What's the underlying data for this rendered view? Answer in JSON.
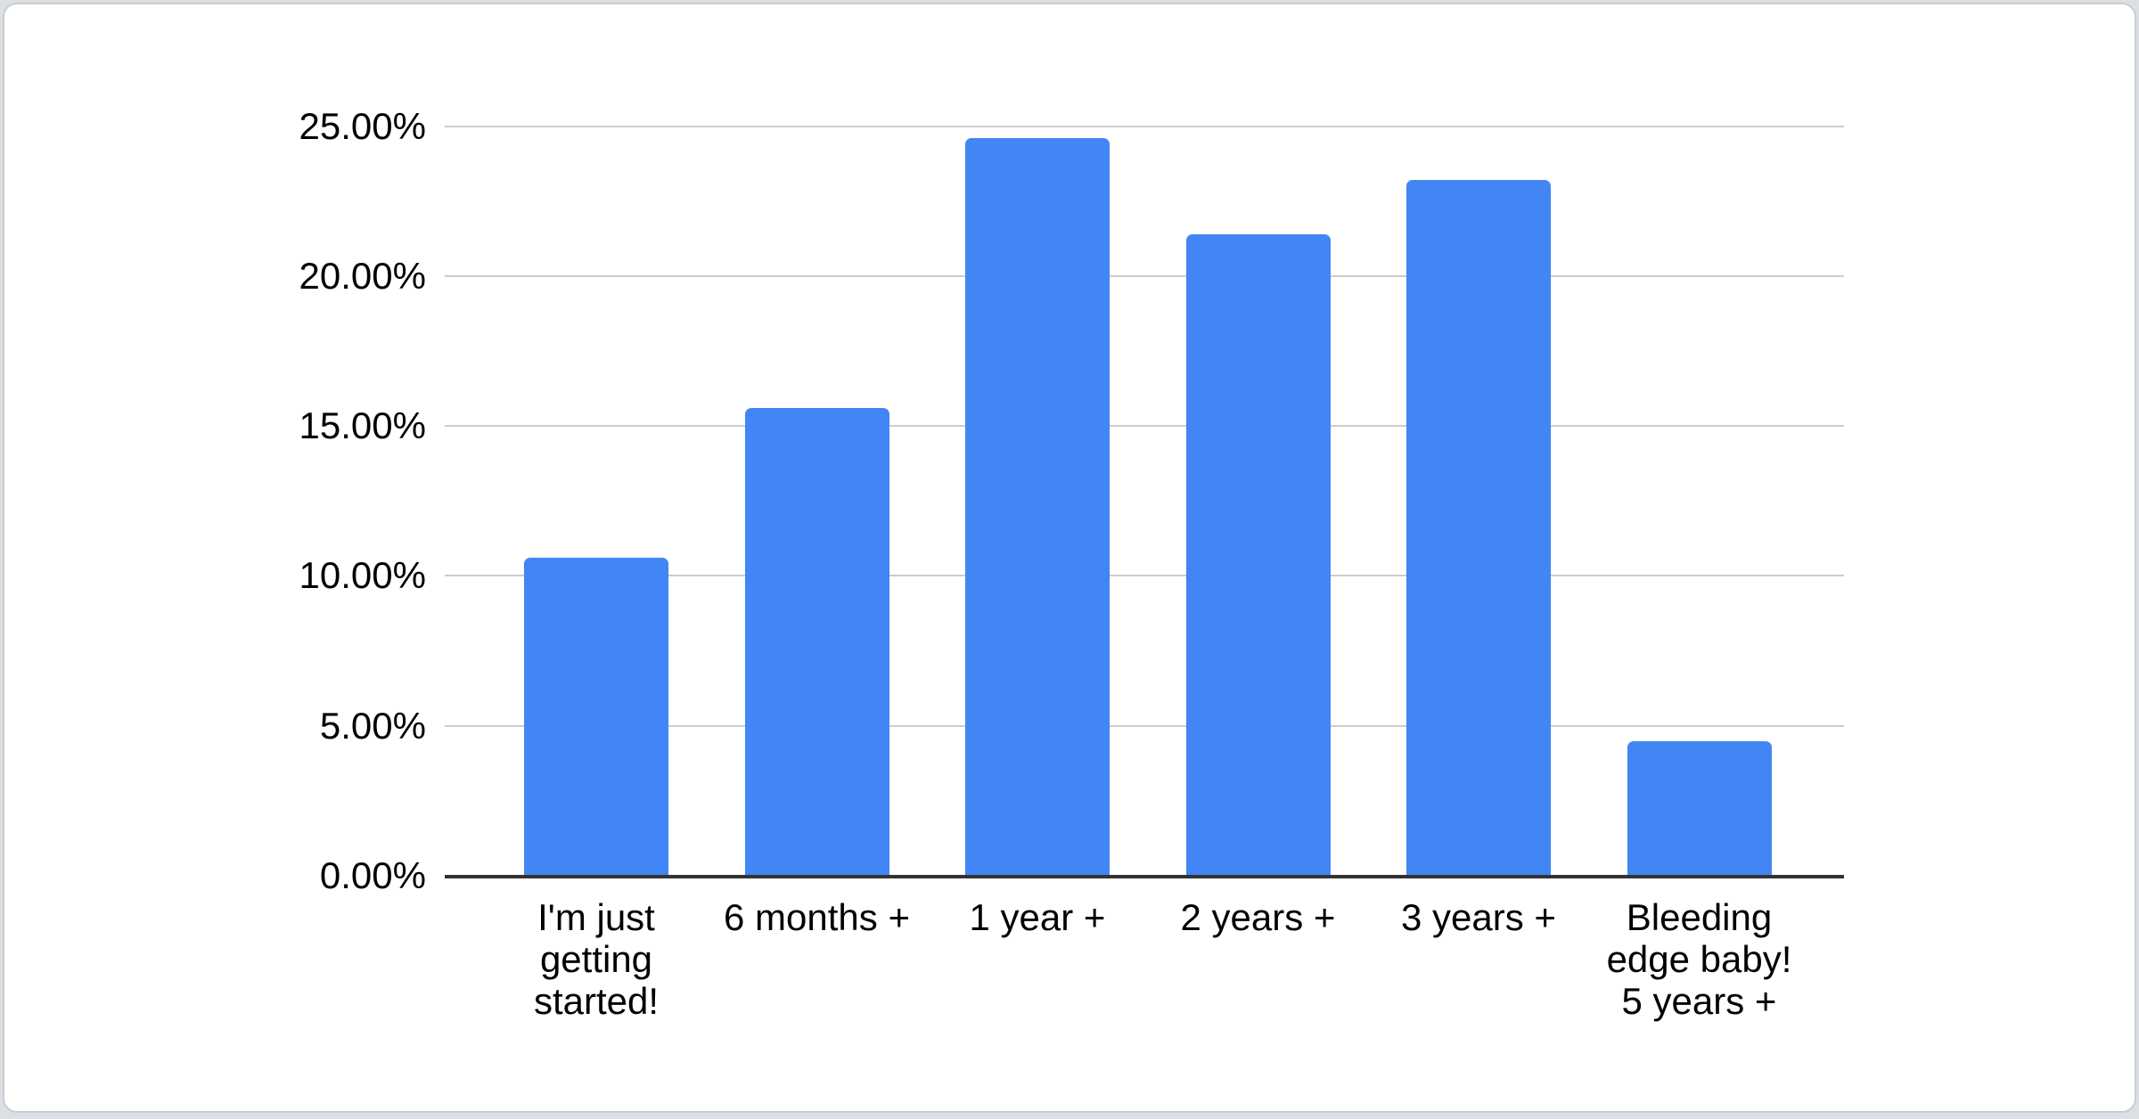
{
  "chart_data": {
    "type": "bar",
    "categories": [
      "I'm just getting started!",
      "6 months +",
      "1 year +",
      "2 years +",
      "3 years +",
      "Bleeding edge baby! 5 years +"
    ],
    "category_display_lines": [
      [
        "I'm just",
        "getting",
        "started!"
      ],
      [
        "6 months +"
      ],
      [
        "1 year +"
      ],
      [
        "2 years +"
      ],
      [
        "3 years +"
      ],
      [
        "Bleeding",
        "edge baby!",
        "5 years +"
      ]
    ],
    "values": [
      10.6,
      15.6,
      24.6,
      21.4,
      23.2,
      4.5
    ],
    "unit": "%",
    "xlabel": "",
    "ylabel": "",
    "y_axis": {
      "tick_labels": [
        "0.00%",
        "5.00%",
        "10.00%",
        "15.00%",
        "20.00%",
        "25.00%"
      ],
      "tick_values": [
        0,
        5,
        10,
        15,
        20,
        25
      ],
      "min": 0,
      "max": 25,
      "grid": true
    },
    "legend": "none"
  },
  "colors": {
    "bar": "#4285f4",
    "gridline": "#cccccc",
    "axis_line": "#333333",
    "text": "#000000",
    "card_background": "#ffffff",
    "card_border": "#c9cdd3",
    "page_background": "#dce0e4"
  }
}
